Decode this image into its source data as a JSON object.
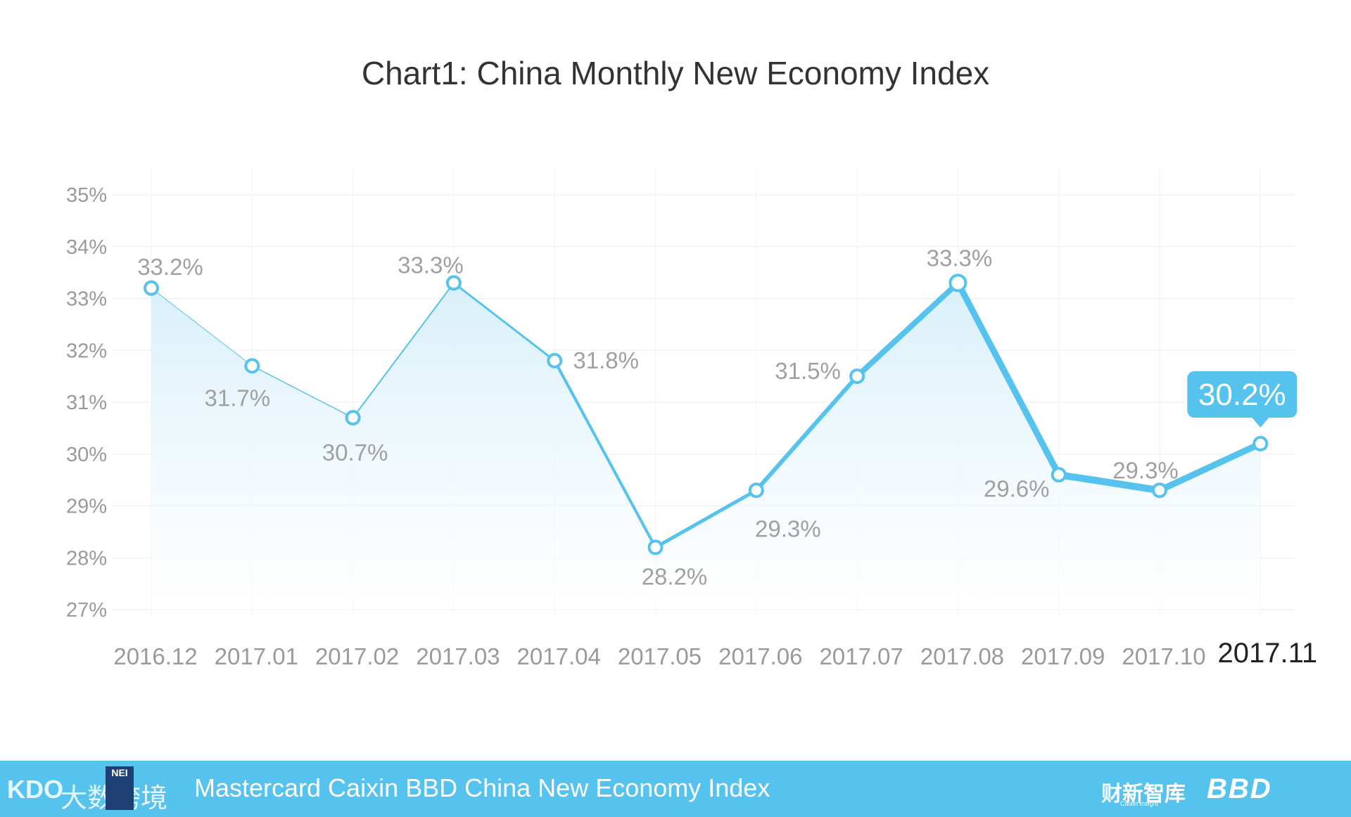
{
  "chart_data": {
    "type": "area",
    "title": "Chart1: China Monthly New Economy Index",
    "categories": [
      "2016.12",
      "2017.01",
      "2017.02",
      "2017.03",
      "2017.04",
      "2017.05",
      "2017.06",
      "2017.07",
      "2017.08",
      "2017.09",
      "2017.10",
      "2017.11"
    ],
    "series": [
      {
        "values": [
          33.2,
          31.7,
          30.7,
          33.3,
          31.8,
          28.2,
          29.3,
          31.5,
          33.3,
          29.6,
          29.3,
          30.2
        ]
      }
    ],
    "data_labels": [
      "33.2%",
      "31.7%",
      "30.7%",
      "33.3%",
      "31.8%",
      "28.2%",
      "29.3%",
      "31.5%",
      "33.3%",
      "29.6%",
      "29.3%",
      "30.2%"
    ],
    "yticks": [
      "27%",
      "28%",
      "29%",
      "30%",
      "31%",
      "32%",
      "33%",
      "34%",
      "35%"
    ],
    "ylim": [
      27,
      35
    ],
    "grid": true,
    "highlight": {
      "category": "2017.11",
      "label": "30.2%"
    },
    "colors": {
      "line": "#56c2ee",
      "area_top": "#d9f1fb",
      "callout": "#56c2ee"
    }
  },
  "footer": {
    "title": "Mastercard Caixin BBD China New Economy Index",
    "brand_cn": "财新智库",
    "brand_sub": "Caixin Insight",
    "brand_bbd": "BBD",
    "logo_text": "大数跨境",
    "logo_mark": "KDO",
    "nei_badge": "NEI"
  }
}
